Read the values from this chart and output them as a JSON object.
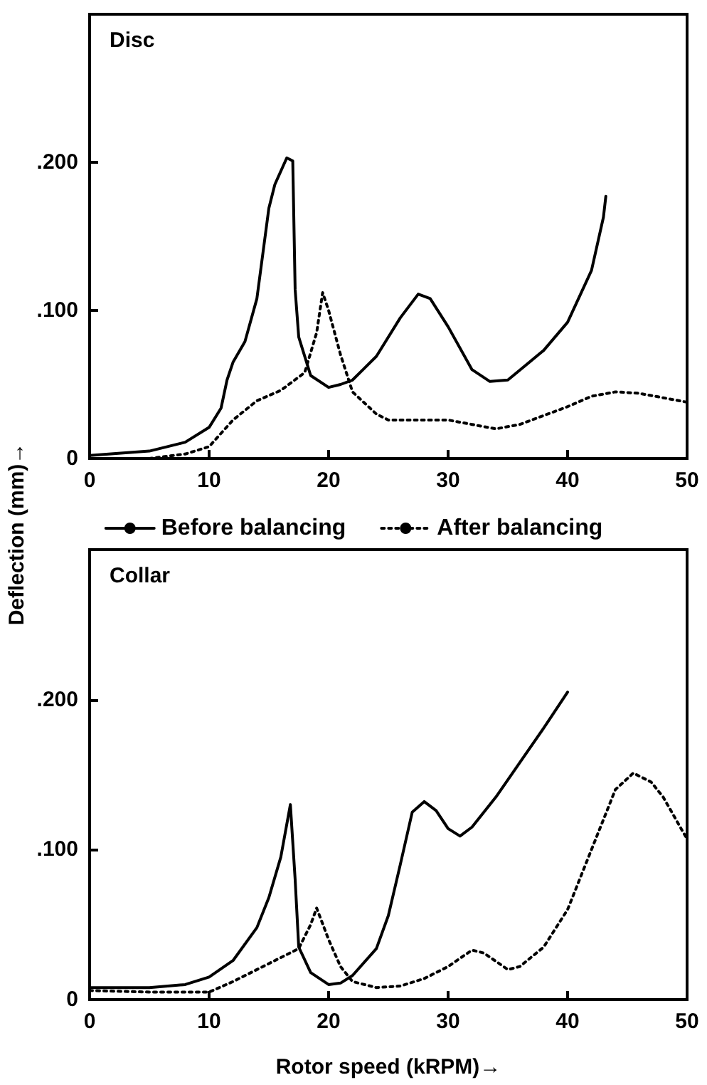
{
  "chart_data": [
    {
      "type": "line",
      "title": "Disc",
      "ylabel": "Deflection (mm)→",
      "xlim": [
        0,
        50
      ],
      "xticks": [
        0,
        10,
        20,
        30,
        40,
        50
      ],
      "ylim": [
        0,
        0.3
      ],
      "yticks": [
        {
          "value": 0,
          "label": "0"
        },
        {
          "value": 0.1,
          "label": ".100"
        },
        {
          "value": 0.2,
          "label": ".200"
        }
      ],
      "grid": false,
      "legend": "bottom",
      "marker": "none",
      "series": [
        {
          "name": "Before balancing",
          "color": "#000000",
          "line_style": "solid",
          "x": [
            0,
            5,
            8,
            10,
            11,
            11.5,
            12,
            13,
            14,
            15,
            15.5,
            16.5,
            17,
            17.2,
            17.5,
            18.5,
            20,
            21,
            22,
            24,
            26,
            27.5,
            28.5,
            30,
            32,
            33.5,
            35,
            38,
            40,
            42,
            43,
            43.2
          ],
          "values": [
            0.002,
            0.005,
            0.011,
            0.021,
            0.034,
            0.053,
            0.065,
            0.079,
            0.108,
            0.169,
            0.185,
            0.203,
            0.201,
            0.114,
            0.082,
            0.056,
            0.048,
            0.05,
            0.053,
            0.069,
            0.095,
            0.111,
            0.108,
            0.089,
            0.06,
            0.052,
            0.053,
            0.073,
            0.092,
            0.127,
            0.163,
            0.177
          ]
        },
        {
          "name": "After balancing",
          "color": "#000000",
          "line_style": "dotted",
          "x": [
            5,
            8,
            10,
            12,
            14,
            16,
            18,
            19,
            19.5,
            20,
            21,
            22,
            24,
            25,
            28,
            30,
            32,
            34,
            36,
            40,
            42,
            44,
            46,
            48,
            50
          ],
          "values": [
            0,
            0.003,
            0.008,
            0.026,
            0.039,
            0.046,
            0.058,
            0.085,
            0.112,
            0.1,
            0.07,
            0.045,
            0.03,
            0.026,
            0.026,
            0.026,
            0.023,
            0.02,
            0.023,
            0.035,
            0.042,
            0.045,
            0.044,
            0.041,
            0.038
          ]
        }
      ]
    },
    {
      "type": "line",
      "title": "Collar",
      "xlabel": "Rotor speed (kRPM)→",
      "xlim": [
        0,
        50
      ],
      "xticks": [
        0,
        10,
        20,
        30,
        40,
        50
      ],
      "ylim": [
        0,
        0.3
      ],
      "yticks": [
        {
          "value": 0,
          "label": "0"
        },
        {
          "value": 0.1,
          "label": ".100"
        },
        {
          "value": 0.2,
          "label": ".200"
        }
      ],
      "grid": false,
      "marker": "none",
      "series": [
        {
          "color": "#000000",
          "line_style": "solid",
          "x": [
            0,
            5,
            8,
            10,
            12,
            14,
            15,
            16,
            16.8,
            17.2,
            17.5,
            18.5,
            20,
            21,
            22,
            24,
            25,
            26,
            27,
            28,
            29,
            30,
            31,
            32,
            34,
            36,
            38,
            40
          ],
          "values": [
            0.008,
            0.008,
            0.01,
            0.015,
            0.026,
            0.048,
            0.068,
            0.095,
            0.13,
            0.08,
            0.035,
            0.018,
            0.01,
            0.011,
            0.016,
            0.034,
            0.056,
            0.09,
            0.125,
            0.132,
            0.126,
            0.114,
            0.109,
            0.115,
            0.135,
            0.158,
            0.181,
            0.205
          ]
        },
        {
          "color": "#000000",
          "line_style": "dotted",
          "x": [
            0,
            5,
            10,
            12,
            14,
            16,
            17.5,
            18.5,
            19,
            20,
            21,
            22,
            24,
            26,
            28,
            30,
            32,
            33,
            35,
            36,
            38,
            40,
            42,
            44,
            45.5,
            47,
            48,
            50
          ],
          "values": [
            0.006,
            0.005,
            0.005,
            0.012,
            0.02,
            0.028,
            0.034,
            0.05,
            0.061,
            0.04,
            0.022,
            0.012,
            0.008,
            0.009,
            0.014,
            0.022,
            0.033,
            0.031,
            0.02,
            0.022,
            0.035,
            0.06,
            0.1,
            0.14,
            0.151,
            0.145,
            0.135,
            0.107
          ]
        }
      ]
    }
  ]
}
